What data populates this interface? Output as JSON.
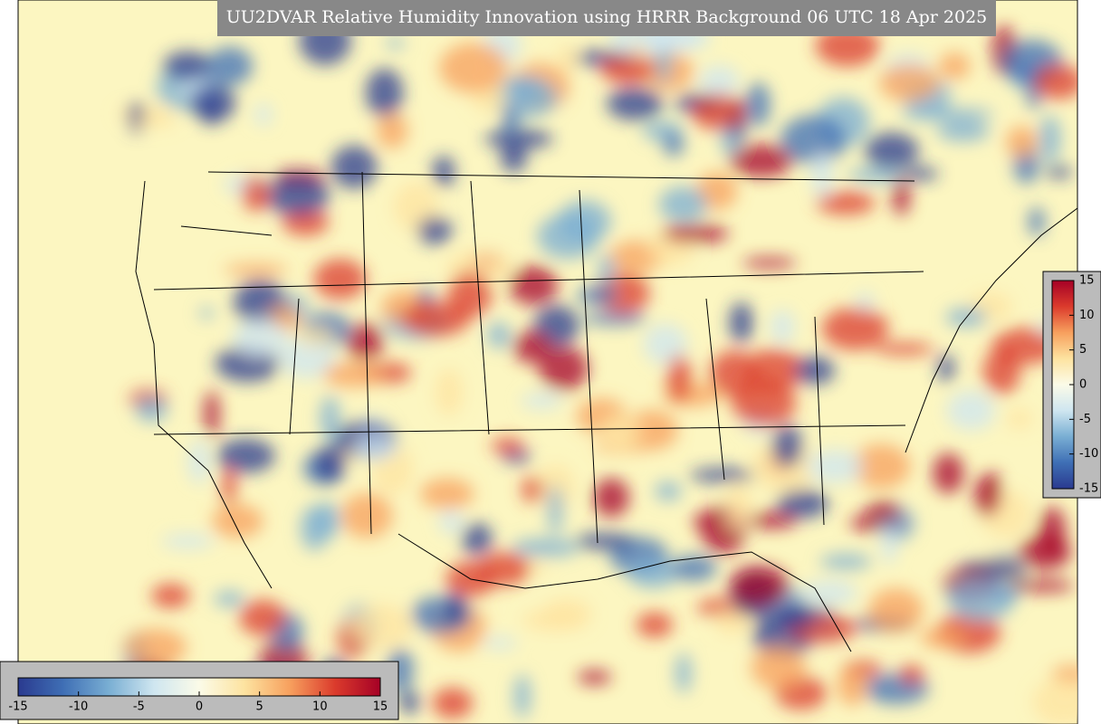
{
  "title": "UU2DVAR Relative Humidity Innovation using HRRR Background 06 UTC 18 Apr 2025",
  "colorbars": [
    {
      "orientation": "vertical",
      "lim": [
        -15,
        15
      ],
      "ticks": [
        15,
        10,
        5,
        0,
        -5,
        -10,
        -15
      ]
    },
    {
      "orientation": "horizontal",
      "lim": [
        -15,
        15
      ],
      "ticks": [
        -15,
        -10,
        -5,
        0,
        5,
        10,
        15
      ]
    }
  ],
  "colors": [
    "#2a3a8f",
    "#3f6fb5",
    "#79aed3",
    "#cfe6f0",
    "#fbfbe8",
    "#fde3a0",
    "#f7a05e",
    "#db3b2c",
    "#a50026"
  ]
}
